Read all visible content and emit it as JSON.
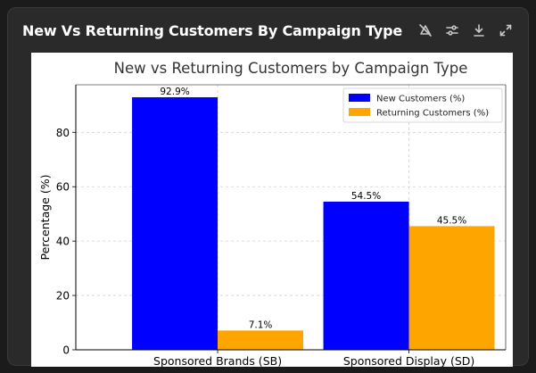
{
  "panel": {
    "title": "New Vs Returning Customers By Campaign Type",
    "toolbar": [
      {
        "name": "toggle-hidden-icon",
        "label": "Toggle"
      },
      {
        "name": "settings-sliders-icon",
        "label": "Settings"
      },
      {
        "name": "download-icon",
        "label": "Download"
      },
      {
        "name": "expand-icon",
        "label": "Expand"
      }
    ]
  },
  "chart_data": {
    "type": "bar",
    "title": "New vs Returning Customers by Campaign Type",
    "xlabel": "",
    "ylabel": "Percentage (%)",
    "categories": [
      "Sponsored Brands (SB)",
      "Sponsored Display (SD)"
    ],
    "series": [
      {
        "name": "New Customers (%)",
        "values": [
          92.9,
          54.5
        ],
        "labels": [
          "92.9%",
          "54.5%"
        ],
        "color": "#0000ff"
      },
      {
        "name": "Returning Customers (%)",
        "values": [
          7.1,
          45.5
        ],
        "labels": [
          "7.1%",
          "45.5%"
        ],
        "color": "#ffa500"
      }
    ],
    "ylim": [
      0,
      97.5
    ],
    "yticks": [
      0,
      20,
      40,
      60,
      80
    ],
    "grid": true,
    "legend": "top-right"
  }
}
